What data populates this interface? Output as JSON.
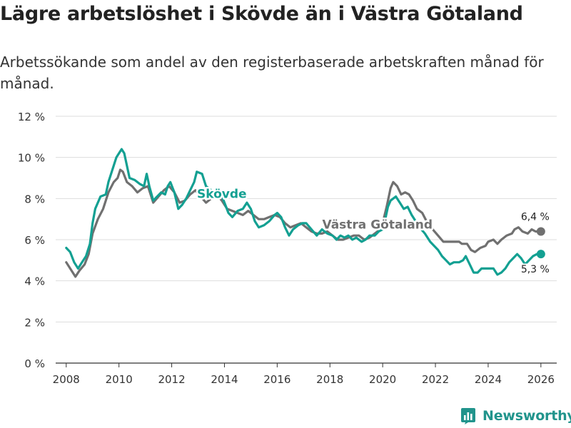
{
  "title": "Lägre arbetslöshet i Skövde än i Västra Götaland",
  "subtitle": "Arbetssökande som andel av den registerbaserade arbetskraften månad för månad.",
  "brand": {
    "name": "Newsworthy",
    "icon": "bar-chart-icon",
    "color": "#21948c"
  },
  "colors": {
    "skovde": "#13a092",
    "vg": "#707070",
    "grid": "#dddddd",
    "axis": "#333333"
  },
  "chart_data": {
    "type": "line",
    "title": "Lägre arbetslöshet i Skövde än i Västra Götaland",
    "xlabel": "",
    "ylabel": "",
    "xlim": [
      2007.6,
      2026.6
    ],
    "ylim": [
      0,
      12
    ],
    "grid": true,
    "x_ticks": [
      2008,
      2010,
      2012,
      2014,
      2016,
      2018,
      2020,
      2022,
      2024,
      2026
    ],
    "y_ticks": [
      {
        "value": 0,
        "label": "0 %"
      },
      {
        "value": 2,
        "label": "2 %"
      },
      {
        "value": 4,
        "label": "4 %"
      },
      {
        "value": 6,
        "label": "6 %"
      },
      {
        "value": 8,
        "label": "8 %"
      },
      {
        "value": 10,
        "label": "10 %"
      },
      {
        "value": 12,
        "label": "12 %"
      }
    ],
    "series": [
      {
        "name": "Västra Götaland",
        "label": "Västra Götaland",
        "color": "#707070",
        "last_label": "6,4 %",
        "points": [
          [
            2008.0,
            4.9
          ],
          [
            2008.2,
            4.5
          ],
          [
            2008.35,
            4.2
          ],
          [
            2008.5,
            4.5
          ],
          [
            2008.7,
            4.8
          ],
          [
            2008.85,
            5.3
          ],
          [
            2009.0,
            6.3
          ],
          [
            2009.2,
            7.0
          ],
          [
            2009.4,
            7.5
          ],
          [
            2009.6,
            8.3
          ],
          [
            2009.8,
            8.8
          ],
          [
            2009.95,
            9.0
          ],
          [
            2010.05,
            9.4
          ],
          [
            2010.15,
            9.3
          ],
          [
            2010.3,
            8.8
          ],
          [
            2010.5,
            8.6
          ],
          [
            2010.7,
            8.3
          ],
          [
            2010.9,
            8.5
          ],
          [
            2011.1,
            8.6
          ],
          [
            2011.3,
            7.8
          ],
          [
            2011.5,
            8.1
          ],
          [
            2011.7,
            8.4
          ],
          [
            2011.9,
            8.6
          ],
          [
            2012.1,
            8.3
          ],
          [
            2012.3,
            7.8
          ],
          [
            2012.5,
            7.9
          ],
          [
            2012.7,
            8.2
          ],
          [
            2012.9,
            8.4
          ],
          [
            2013.1,
            8.1
          ],
          [
            2013.3,
            7.8
          ],
          [
            2013.5,
            8.0
          ],
          [
            2013.7,
            8.2
          ],
          [
            2013.9,
            7.9
          ],
          [
            2014.1,
            7.5
          ],
          [
            2014.3,
            7.4
          ],
          [
            2014.5,
            7.3
          ],
          [
            2014.7,
            7.2
          ],
          [
            2014.9,
            7.4
          ],
          [
            2015.1,
            7.2
          ],
          [
            2015.3,
            7.0
          ],
          [
            2015.5,
            7.0
          ],
          [
            2015.7,
            7.1
          ],
          [
            2015.9,
            7.2
          ],
          [
            2016.1,
            7.1
          ],
          [
            2016.3,
            6.8
          ],
          [
            2016.5,
            6.6
          ],
          [
            2016.7,
            6.7
          ],
          [
            2016.9,
            6.8
          ],
          [
            2017.1,
            6.6
          ],
          [
            2017.3,
            6.4
          ],
          [
            2017.5,
            6.3
          ],
          [
            2017.7,
            6.3
          ],
          [
            2017.9,
            6.4
          ],
          [
            2018.1,
            6.2
          ],
          [
            2018.3,
            6.0
          ],
          [
            2018.5,
            6.0
          ],
          [
            2018.7,
            6.1
          ],
          [
            2018.9,
            6.2
          ],
          [
            2019.1,
            6.2
          ],
          [
            2019.3,
            6.0
          ],
          [
            2019.5,
            6.1
          ],
          [
            2019.7,
            6.3
          ],
          [
            2019.9,
            6.5
          ],
          [
            2020.0,
            6.8
          ],
          [
            2020.15,
            7.6
          ],
          [
            2020.3,
            8.5
          ],
          [
            2020.4,
            8.8
          ],
          [
            2020.55,
            8.6
          ],
          [
            2020.7,
            8.2
          ],
          [
            2020.85,
            8.3
          ],
          [
            2021.0,
            8.2
          ],
          [
            2021.15,
            7.9
          ],
          [
            2021.3,
            7.5
          ],
          [
            2021.5,
            7.3
          ],
          [
            2021.7,
            6.8
          ],
          [
            2021.9,
            6.5
          ],
          [
            2022.1,
            6.2
          ],
          [
            2022.3,
            5.9
          ],
          [
            2022.5,
            5.9
          ],
          [
            2022.7,
            5.9
          ],
          [
            2022.9,
            5.9
          ],
          [
            2023.0,
            5.8
          ],
          [
            2023.2,
            5.8
          ],
          [
            2023.35,
            5.5
          ],
          [
            2023.5,
            5.4
          ],
          [
            2023.7,
            5.6
          ],
          [
            2023.9,
            5.7
          ],
          [
            2024.0,
            5.9
          ],
          [
            2024.2,
            6.0
          ],
          [
            2024.35,
            5.8
          ],
          [
            2024.5,
            6.0
          ],
          [
            2024.7,
            6.2
          ],
          [
            2024.9,
            6.3
          ],
          [
            2025.0,
            6.5
          ],
          [
            2025.15,
            6.6
          ],
          [
            2025.3,
            6.4
          ],
          [
            2025.5,
            6.3
          ],
          [
            2025.65,
            6.5
          ],
          [
            2025.8,
            6.4
          ],
          [
            2026.0,
            6.4
          ]
        ]
      },
      {
        "name": "Skövde",
        "label": "Skövde",
        "color": "#13a092",
        "last_label": "5,3 %",
        "points": [
          [
            2008.0,
            5.6
          ],
          [
            2008.15,
            5.4
          ],
          [
            2008.3,
            4.9
          ],
          [
            2008.45,
            4.6
          ],
          [
            2008.6,
            4.9
          ],
          [
            2008.75,
            5.2
          ],
          [
            2008.9,
            5.8
          ],
          [
            2009.0,
            6.8
          ],
          [
            2009.1,
            7.5
          ],
          [
            2009.3,
            8.1
          ],
          [
            2009.5,
            8.2
          ],
          [
            2009.6,
            8.8
          ],
          [
            2009.8,
            9.6
          ],
          [
            2009.9,
            10.0
          ],
          [
            2010.0,
            10.2
          ],
          [
            2010.1,
            10.4
          ],
          [
            2010.2,
            10.2
          ],
          [
            2010.3,
            9.6
          ],
          [
            2010.4,
            9.0
          ],
          [
            2010.6,
            8.9
          ],
          [
            2010.8,
            8.7
          ],
          [
            2010.95,
            8.6
          ],
          [
            2011.05,
            9.2
          ],
          [
            2011.15,
            8.6
          ],
          [
            2011.3,
            7.9
          ],
          [
            2011.45,
            8.1
          ],
          [
            2011.6,
            8.3
          ],
          [
            2011.75,
            8.2
          ],
          [
            2011.85,
            8.6
          ],
          [
            2011.95,
            8.8
          ],
          [
            2012.1,
            8.3
          ],
          [
            2012.25,
            7.5
          ],
          [
            2012.4,
            7.7
          ],
          [
            2012.55,
            8.0
          ],
          [
            2012.7,
            8.4
          ],
          [
            2012.85,
            8.8
          ],
          [
            2012.95,
            9.3
          ],
          [
            2013.15,
            9.2
          ],
          [
            2013.3,
            8.6
          ],
          [
            2013.5,
            8.4
          ],
          [
            2013.7,
            8.2
          ],
          [
            2013.85,
            8.3
          ],
          [
            2014.0,
            7.8
          ],
          [
            2014.15,
            7.3
          ],
          [
            2014.3,
            7.1
          ],
          [
            2014.5,
            7.4
          ],
          [
            2014.7,
            7.5
          ],
          [
            2014.85,
            7.8
          ],
          [
            2015.0,
            7.5
          ],
          [
            2015.15,
            6.9
          ],
          [
            2015.3,
            6.6
          ],
          [
            2015.5,
            6.7
          ],
          [
            2015.7,
            6.9
          ],
          [
            2015.9,
            7.2
          ],
          [
            2016.0,
            7.3
          ],
          [
            2016.15,
            7.1
          ],
          [
            2016.3,
            6.6
          ],
          [
            2016.45,
            6.2
          ],
          [
            2016.6,
            6.5
          ],
          [
            2016.8,
            6.7
          ],
          [
            2016.95,
            6.8
          ],
          [
            2017.1,
            6.8
          ],
          [
            2017.3,
            6.5
          ],
          [
            2017.5,
            6.2
          ],
          [
            2017.7,
            6.5
          ],
          [
            2017.9,
            6.3
          ],
          [
            2018.1,
            6.2
          ],
          [
            2018.25,
            6.0
          ],
          [
            2018.4,
            6.2
          ],
          [
            2018.55,
            6.1
          ],
          [
            2018.7,
            6.2
          ],
          [
            2018.85,
            6.0
          ],
          [
            2019.0,
            6.1
          ],
          [
            2019.2,
            5.9
          ],
          [
            2019.35,
            6.0
          ],
          [
            2019.5,
            6.2
          ],
          [
            2019.7,
            6.2
          ],
          [
            2019.85,
            6.4
          ],
          [
            2020.0,
            6.5
          ],
          [
            2020.1,
            7.0
          ],
          [
            2020.2,
            7.6
          ],
          [
            2020.3,
            7.9
          ],
          [
            2020.5,
            8.1
          ],
          [
            2020.65,
            7.8
          ],
          [
            2020.8,
            7.5
          ],
          [
            2020.95,
            7.6
          ],
          [
            2021.1,
            7.2
          ],
          [
            2021.25,
            6.9
          ],
          [
            2021.4,
            6.6
          ],
          [
            2021.6,
            6.3
          ],
          [
            2021.8,
            5.9
          ],
          [
            2021.95,
            5.7
          ],
          [
            2022.1,
            5.5
          ],
          [
            2022.25,
            5.2
          ],
          [
            2022.4,
            5.0
          ],
          [
            2022.55,
            4.8
          ],
          [
            2022.7,
            4.9
          ],
          [
            2022.9,
            4.9
          ],
          [
            2023.05,
            5.0
          ],
          [
            2023.15,
            5.2
          ],
          [
            2023.3,
            4.8
          ],
          [
            2023.45,
            4.4
          ],
          [
            2023.6,
            4.4
          ],
          [
            2023.75,
            4.6
          ],
          [
            2023.9,
            4.6
          ],
          [
            2024.05,
            4.6
          ],
          [
            2024.2,
            4.6
          ],
          [
            2024.35,
            4.3
          ],
          [
            2024.5,
            4.4
          ],
          [
            2024.65,
            4.6
          ],
          [
            2024.8,
            4.9
          ],
          [
            2024.95,
            5.1
          ],
          [
            2025.1,
            5.3
          ],
          [
            2025.25,
            5.1
          ],
          [
            2025.4,
            4.8
          ],
          [
            2025.55,
            5.0
          ],
          [
            2025.7,
            5.2
          ],
          [
            2025.85,
            5.3
          ],
          [
            2026.0,
            5.3
          ]
        ]
      }
    ],
    "annotations": [
      {
        "text": "Skövde",
        "series": "Skövde",
        "x": 2013.9,
        "y": 8.1
      },
      {
        "text": "Västra Götaland",
        "series": "Västra Götaland",
        "x": 2019.8,
        "y": 6.6
      },
      {
        "text": "6,4 %",
        "series": "Västra Götaland",
        "x": 2026.0,
        "y": 6.4
      },
      {
        "text": "5,3 %",
        "series": "Skövde",
        "x": 2026.0,
        "y": 5.3
      }
    ]
  }
}
